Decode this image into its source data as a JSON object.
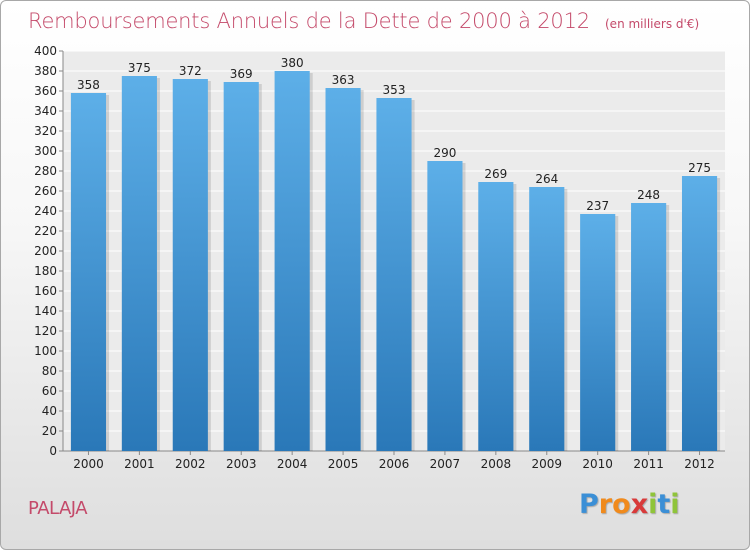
{
  "chart_data": {
    "type": "bar",
    "title": "Remboursements Annuels de la Dette de 2000 à 2012",
    "subtitle": "(en milliers d'€)",
    "xlabel": "",
    "ylabel": "",
    "categories": [
      "2000",
      "2001",
      "2002",
      "2003",
      "2004",
      "2005",
      "2006",
      "2007",
      "2008",
      "2009",
      "2010",
      "2011",
      "2012"
    ],
    "values": [
      358,
      375,
      372,
      369,
      380,
      363,
      353,
      290,
      269,
      264,
      237,
      248,
      275
    ],
    "ylim": [
      0,
      400
    ],
    "ytick_step": 20,
    "grid": true,
    "bar_color_top": "#5dafe8",
    "bar_color_bottom": "#2a78b8"
  },
  "footer": {
    "commune": "PALAJA",
    "logo_letters": [
      "P",
      "r",
      "o",
      "x",
      "i",
      "t",
      "i"
    ],
    "logo_colors": [
      "#3b8fd6",
      "#f08a1c",
      "#f08a1c",
      "#d83a3a",
      "#8fc43a",
      "#3b8fd6",
      "#8fc43a"
    ]
  }
}
